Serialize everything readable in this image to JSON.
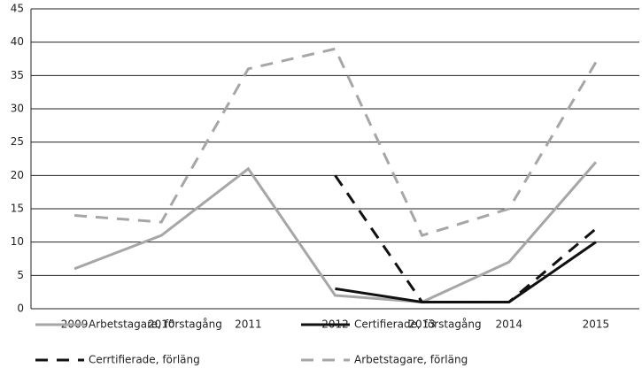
{
  "chart_data": {
    "type": "line",
    "categories": [
      "2009",
      "2010",
      "2011",
      "2012",
      "2013",
      "2014",
      "2015"
    ],
    "series": [
      {
        "name": "Arbetstagare, förstagång",
        "color": "#a6a6a6",
        "dash": false,
        "values": [
          6,
          11,
          21,
          2,
          1,
          7,
          22
        ]
      },
      {
        "name": "Certifierade, förstagång",
        "color": "#111111",
        "dash": false,
        "values": [
          null,
          null,
          null,
          3,
          1,
          1,
          10
        ]
      },
      {
        "name": "Cerrtifierade, förläng",
        "color": "#111111",
        "dash": true,
        "values": [
          null,
          null,
          null,
          20,
          1,
          1,
          12
        ]
      },
      {
        "name": "Arbetstagare, förläng",
        "color": "#a6a6a6",
        "dash": true,
        "values": [
          14,
          13,
          36,
          39,
          11,
          15,
          37
        ]
      }
    ],
    "ylim": [
      0,
      45
    ],
    "yticks": [
      0,
      5,
      10,
      15,
      20,
      25,
      30,
      35,
      40,
      45
    ],
    "grid": true,
    "legend": "bottom"
  }
}
